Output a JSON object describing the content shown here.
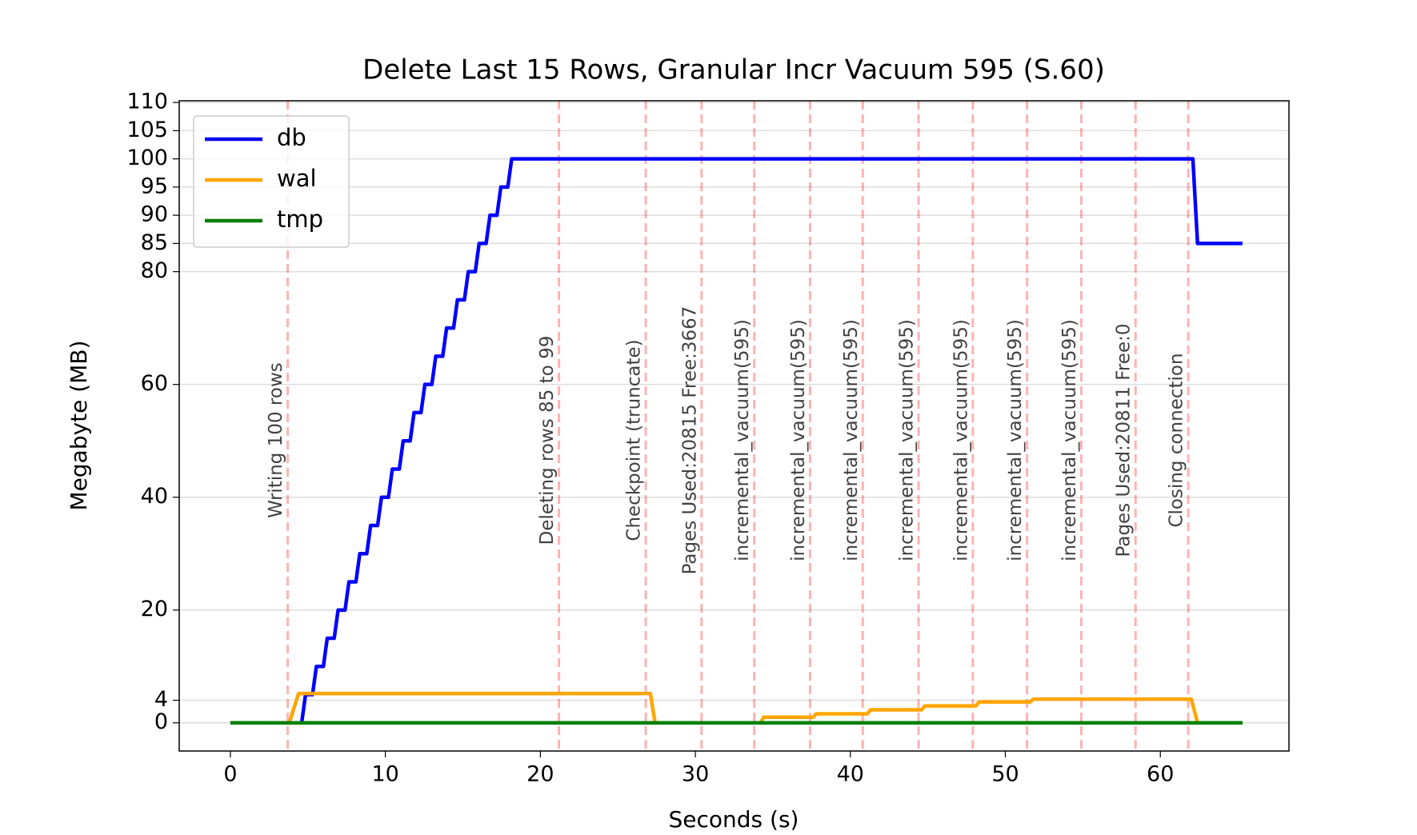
{
  "chart_data": {
    "type": "line",
    "title": "Delete Last 15 Rows, Granular Incr Vacuum 595 (S.60)",
    "x_label": "Seconds (s)",
    "y_label": "Megabyte (MB)",
    "xlim": [
      -3.3,
      68.3
    ],
    "ylim": [
      -5,
      110.3
    ],
    "xticks": [
      0,
      10,
      20,
      30,
      40,
      50,
      60
    ],
    "yticks": [
      0,
      4,
      20,
      40,
      60,
      80,
      85,
      90,
      95,
      100,
      105,
      110
    ],
    "grid": true,
    "legend": "upper left",
    "series": [
      {
        "name": "db",
        "color": "#0000ff",
        "x": [
          0,
          4.6,
          4.85,
          5.3,
          5.55,
          6.0,
          6.25,
          6.7,
          6.95,
          7.4,
          7.65,
          8.1,
          8.35,
          8.8,
          9.05,
          9.5,
          9.75,
          10.2,
          10.45,
          10.9,
          11.15,
          11.6,
          11.85,
          12.3,
          12.55,
          13.0,
          13.25,
          13.7,
          13.95,
          14.4,
          14.65,
          15.1,
          15.35,
          15.8,
          16.05,
          16.5,
          16.75,
          17.2,
          17.45,
          17.9,
          18.15,
          62.1,
          62.4,
          65.3
        ],
        "values": [
          0,
          0,
          5,
          5,
          10,
          10,
          15,
          15,
          20,
          20,
          25,
          25,
          30,
          30,
          35,
          35,
          40,
          40,
          45,
          45,
          50,
          50,
          55,
          55,
          60,
          60,
          65,
          65,
          70,
          70,
          75,
          75,
          80,
          80,
          85,
          85,
          90,
          90,
          95,
          95,
          100,
          100,
          85,
          85
        ]
      },
      {
        "name": "wal",
        "color": "#ffa500",
        "x": [
          0,
          3.8,
          4.4,
          27.1,
          27.4,
          34.2,
          34.4,
          37.6,
          37.8,
          41.1,
          41.3,
          44.6,
          44.8,
          48.1,
          48.3,
          51.6,
          51.8,
          62.0,
          62.4,
          65.3
        ],
        "values": [
          0,
          0,
          5.2,
          5.2,
          0,
          0,
          1.0,
          1.0,
          1.6,
          1.6,
          2.3,
          2.3,
          3.0,
          3.0,
          3.7,
          3.7,
          4.2,
          4.2,
          0,
          0
        ]
      },
      {
        "name": "tmp",
        "color": "#008000",
        "x": [
          0,
          65.3
        ],
        "values": [
          0,
          0
        ]
      }
    ],
    "annotations": [
      {
        "x": 3.7,
        "label": "Writing 100 rows"
      },
      {
        "x": 21.2,
        "label": "Deleting rows 85 to 99"
      },
      {
        "x": 26.8,
        "label": "Checkpoint (truncate)"
      },
      {
        "x": 30.4,
        "label": "Pages Used:20815 Free:3667"
      },
      {
        "x": 33.8,
        "label": "incremental_vacuum(595)"
      },
      {
        "x": 37.4,
        "label": "incremental_vacuum(595)"
      },
      {
        "x": 40.8,
        "label": "incremental_vacuum(595)"
      },
      {
        "x": 44.4,
        "label": "incremental_vacuum(595)"
      },
      {
        "x": 47.9,
        "label": "incremental_vacuum(595)"
      },
      {
        "x": 51.4,
        "label": "incremental_vacuum(595)"
      },
      {
        "x": 54.9,
        "label": "incremental_vacuum(595)"
      },
      {
        "x": 58.4,
        "label": "Pages Used:20811 Free:0"
      },
      {
        "x": 61.8,
        "label": "Closing connection"
      }
    ],
    "annotation_color": "#ff0000"
  }
}
